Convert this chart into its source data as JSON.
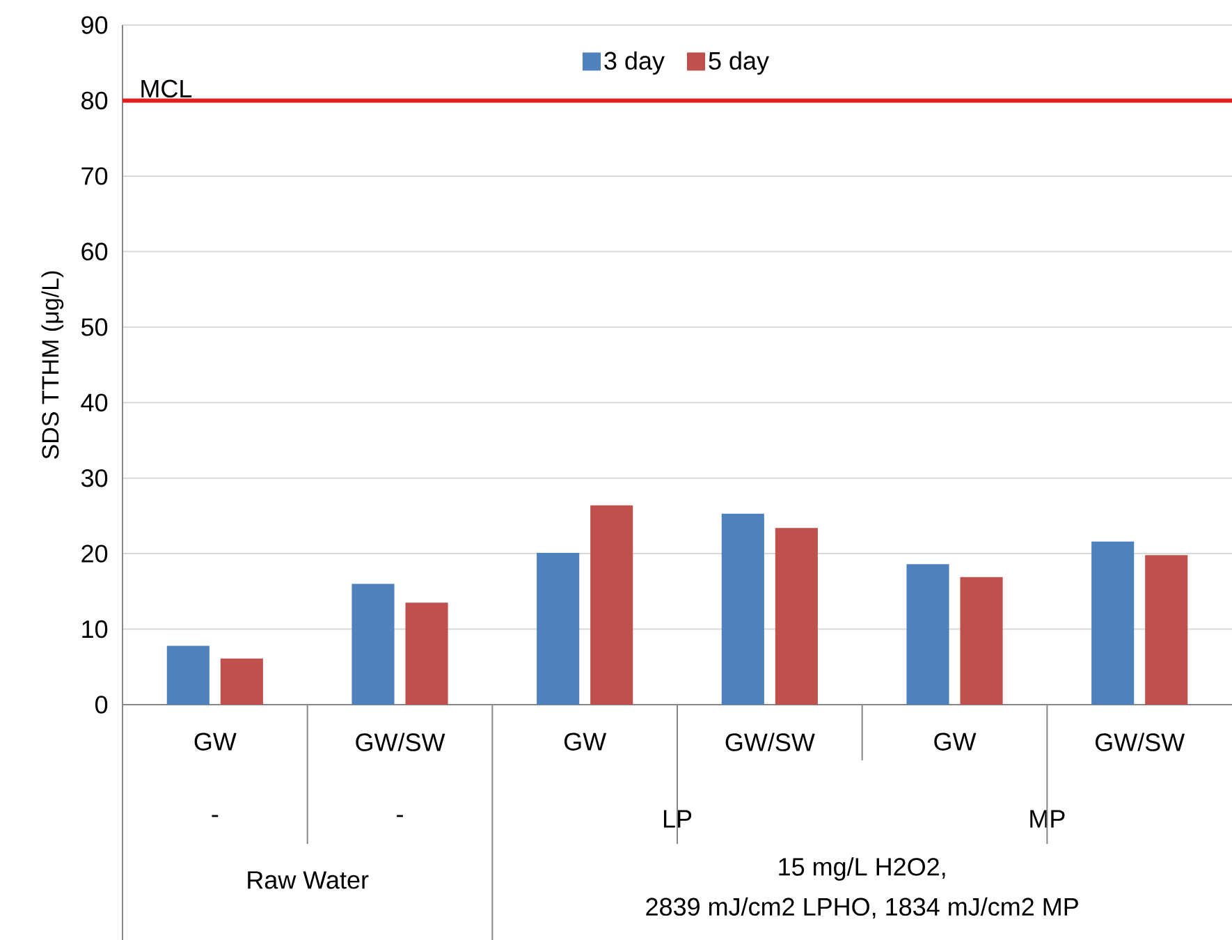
{
  "chart_data": {
    "type": "bar",
    "ylabel": "SDS TTHM (μg/L)",
    "categories": [
      "GW",
      "GW/SW",
      "GW",
      "GW/SW",
      "GW",
      "GW/SW"
    ],
    "series": [
      {
        "name": "3 day",
        "color": "#4f81bd",
        "values": [
          7.8,
          16.0,
          20.1,
          25.3,
          18.6,
          21.6
        ]
      },
      {
        "name": "5 day",
        "color": "#c0504d",
        "values": [
          6.1,
          13.5,
          26.4,
          23.4,
          16.9,
          19.8
        ]
      }
    ],
    "ylim": [
      0,
      90
    ],
    "yticks": [
      0,
      10,
      20,
      30,
      40,
      50,
      60,
      70,
      80,
      90
    ],
    "grid": "y",
    "legend": "top",
    "ref_lines": [
      {
        "axis": "y",
        "value": 80,
        "label": "MCL",
        "color": "#e0201e"
      }
    ],
    "annotations": [
      "-",
      "-",
      "LP",
      "MP",
      "Raw Water",
      "15 mg/L H2O2,",
      "2839 mJ/cm2 LPHO, 1834 mJ/cm2 MP"
    ]
  }
}
